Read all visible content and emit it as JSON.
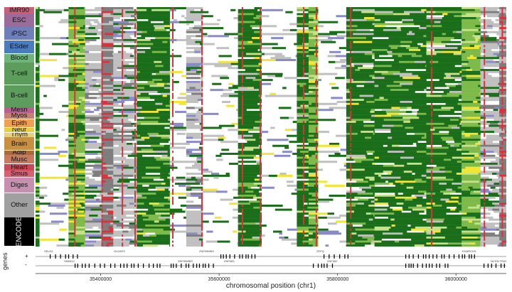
{
  "colors": {
    "strong": "#1a6e1a",
    "weak": "#7dba4a",
    "light": "#c7e08a",
    "enh": "#f2e534",
    "quiet": "#c0c0c0",
    "repressed": "#8a8ac8",
    "tss": "#d8323c",
    "het": "#7d7d7d",
    "blank": "#ffffff"
  },
  "groups": [
    {
      "label": "IMR90",
      "color": "#c8607a",
      "rows": 1.5
    },
    {
      "label": "ESC",
      "color": "#9c6b9b",
      "rows": 3
    },
    {
      "label": "iPSC",
      "color": "#6f80b8",
      "rows": 3
    },
    {
      "label": "ESder",
      "color": "#4a7cc0",
      "rows": 3
    },
    {
      "label": "Blood",
      "color": "#6fb47a",
      "rows": 2
    },
    {
      "label": "T-cell",
      "color": "#5c9c5c",
      "rows": 5
    },
    {
      "label": "B-cell",
      "color": "#5c9c5c",
      "rows": 5
    },
    {
      "label": "Mesn",
      "color": "#b86090",
      "rows": 1.3
    },
    {
      "label": "Myos",
      "color": "#c88070",
      "rows": 1.3
    },
    {
      "label": "Epith",
      "color": "#f0a050",
      "rows": 2
    },
    {
      "label": "Neur",
      "color": "#e6d040",
      "rows": 1.1
    },
    {
      "label": "Thym",
      "color": "#e6d080",
      "rows": 1
    },
    {
      "label": "Brain",
      "color": "#c89040",
      "rows": 3
    },
    {
      "label": "Adip",
      "color": "#a86b3c",
      "rows": 1
    },
    {
      "label": "Musc",
      "color": "#c87a5c",
      "rows": 2
    },
    {
      "label": "Heart",
      "color": "#c84a5a",
      "rows": 1.5
    },
    {
      "label": "Smus",
      "color": "#d86070",
      "rows": 1.5
    },
    {
      "label": "Diges",
      "color": "#c890b0",
      "rows": 3.5
    },
    {
      "label": "Other",
      "color": "#a0a0a0",
      "rows": 5.5
    },
    {
      "label": "ENCODE",
      "color": "#000000",
      "rows": 6.5,
      "dark": true,
      "vertical": true
    }
  ],
  "genes": {
    "title": "genes",
    "strand_plus": "+",
    "strand_minus": "-",
    "names": [
      "SELE4",
      "SMIM12",
      "GLDAP3",
      "ZNF99MBS",
      "ZNF99MBS",
      "ZNF683",
      "SFPQ",
      "ZNF362",
      "KHARCH3",
      "NCDN TRAF4D"
    ]
  },
  "axis": {
    "label": "chromosomal position (chr1)",
    "ticks": [
      {
        "value": 35400000,
        "label": "35400000"
      },
      {
        "value": 35600000,
        "label": "35600000"
      },
      {
        "value": 35800000,
        "label": "35800000"
      },
      {
        "value": 36000000,
        "label": "36000000"
      }
    ],
    "range": [
      35290000,
      36085000
    ]
  },
  "bands": [
    {
      "from": 0.0,
      "to": 0.008,
      "state": "strong"
    },
    {
      "from": 0.008,
      "to": 0.07,
      "state": "blank"
    },
    {
      "from": 0.07,
      "to": 0.105,
      "state": "weak"
    },
    {
      "from": 0.105,
      "to": 0.14,
      "state": "quiet"
    },
    {
      "from": 0.14,
      "to": 0.165,
      "state": "het"
    },
    {
      "from": 0.165,
      "to": 0.215,
      "state": "quiet"
    },
    {
      "from": 0.215,
      "to": 0.285,
      "state": "strong"
    },
    {
      "from": 0.285,
      "to": 0.32,
      "state": "blank"
    },
    {
      "from": 0.32,
      "to": 0.355,
      "state": "quiet"
    },
    {
      "from": 0.355,
      "to": 0.43,
      "state": "blank"
    },
    {
      "from": 0.43,
      "to": 0.48,
      "state": "strong"
    },
    {
      "from": 0.48,
      "to": 0.555,
      "state": "blank"
    },
    {
      "from": 0.555,
      "to": 0.58,
      "state": "strong"
    },
    {
      "from": 0.58,
      "to": 0.6,
      "state": "weak"
    },
    {
      "from": 0.6,
      "to": 0.66,
      "state": "blank"
    },
    {
      "from": 0.66,
      "to": 0.72,
      "state": "strong"
    },
    {
      "from": 0.72,
      "to": 0.83,
      "state": "strong"
    },
    {
      "from": 0.83,
      "to": 0.905,
      "state": "strong"
    },
    {
      "from": 0.905,
      "to": 0.945,
      "state": "weak"
    },
    {
      "from": 0.945,
      "to": 0.985,
      "state": "quiet"
    },
    {
      "from": 0.985,
      "to": 1.0,
      "state": "het"
    }
  ]
}
